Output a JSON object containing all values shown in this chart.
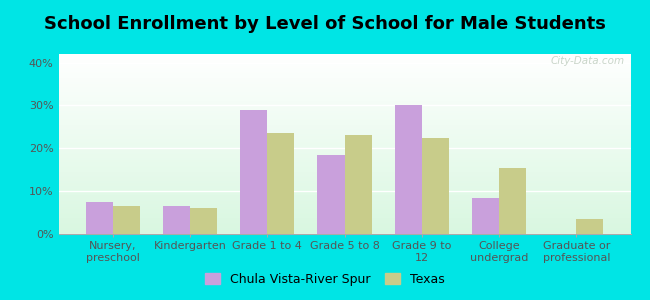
{
  "title": "School Enrollment by Level of School for Male Students",
  "categories": [
    "Nursery,\npreschool",
    "Kindergarten",
    "Grade 1 to 4",
    "Grade 5 to 8",
    "Grade 9 to\n12",
    "College\nundergrad",
    "Graduate or\nprofessional"
  ],
  "city_values": [
    7.5,
    6.5,
    29.0,
    18.5,
    30.0,
    8.5,
    0.0
  ],
  "texas_values": [
    6.5,
    6.0,
    23.5,
    23.0,
    22.5,
    15.5,
    3.5
  ],
  "city_color": "#c9a0dc",
  "texas_color": "#c8cc8a",
  "city_label": "Chula Vista-River Spur",
  "texas_label": "Texas",
  "ylim": [
    0,
    42
  ],
  "yticks": [
    0,
    10,
    20,
    30,
    40
  ],
  "ytick_labels": [
    "0%",
    "10%",
    "20%",
    "30%",
    "40%"
  ],
  "background_color": "#00e5e5",
  "bar_width": 0.35,
  "title_fontsize": 13,
  "tick_fontsize": 8,
  "legend_fontsize": 9,
  "watermark": "City-Data.com",
  "gradient_colors": [
    "#d4eeda",
    "#f5fff5",
    "#ffffff"
  ],
  "grid_color": "#ffffff",
  "axis_label_color": "#555555"
}
